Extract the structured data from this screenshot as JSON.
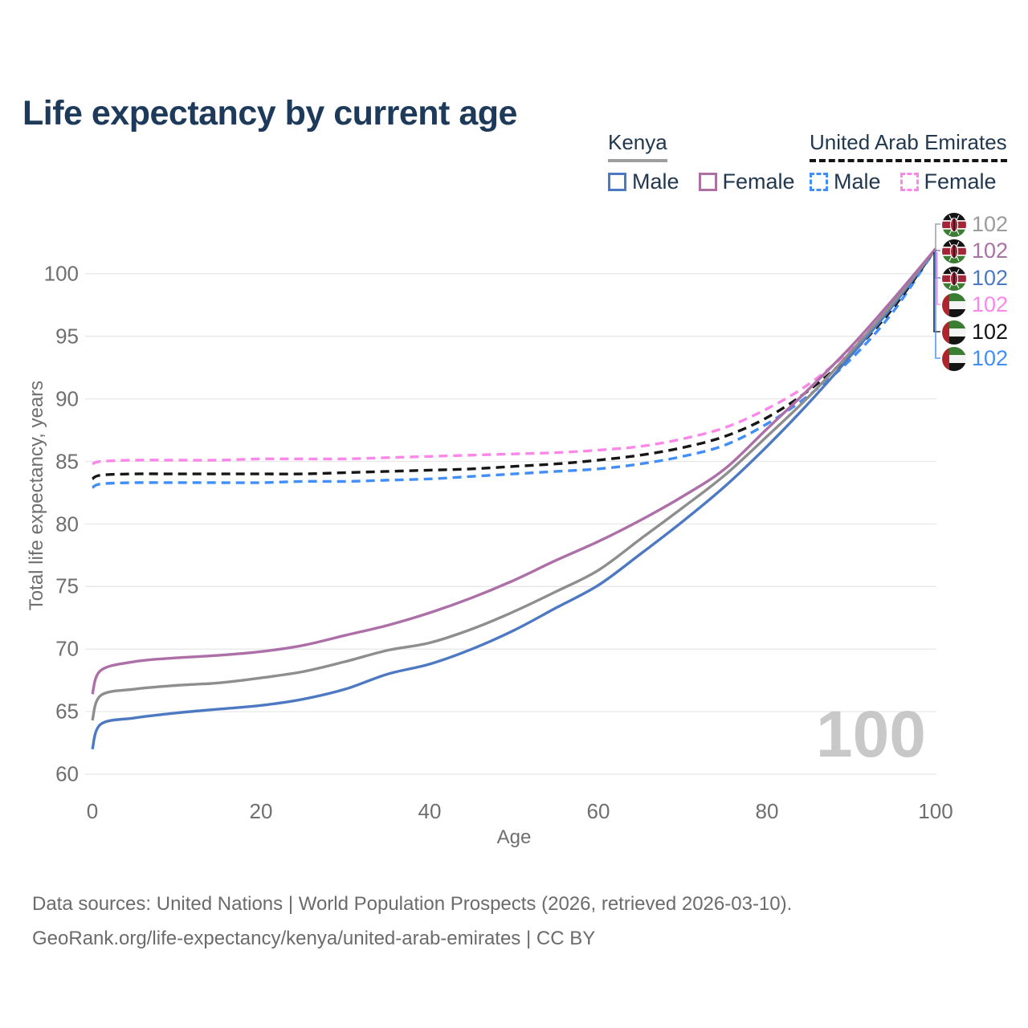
{
  "title": "Life expectancy by current age",
  "legend": {
    "kenya": {
      "title": "Kenya",
      "male": "Male",
      "female": "Female"
    },
    "uae": {
      "title": "United Arab Emirates",
      "male": "Male",
      "female": "Female"
    }
  },
  "watermark": "100",
  "right_labels": [
    {
      "flag": "kenya",
      "series": "kenya-both",
      "value": "102",
      "color": "#9b9b9b"
    },
    {
      "flag": "kenya",
      "series": "kenya-female",
      "value": "102",
      "color": "#a873a4"
    },
    {
      "flag": "kenya",
      "series": "kenya-male",
      "value": "102",
      "color": "#4d79c2"
    },
    {
      "flag": "uae",
      "series": "uae-female",
      "value": "102",
      "color": "#fb87e8"
    },
    {
      "flag": "uae",
      "series": "uae-both",
      "value": "102",
      "color": "#141414"
    },
    {
      "flag": "uae",
      "series": "uae-male",
      "value": "102",
      "color": "#418ff6"
    }
  ],
  "footer": {
    "line1": "Data sources: United Nations | World Population Prospects (2026, retrieved 2026-03-10).",
    "line2": "GeoRank.org/life-expectancy/kenya/united-arab-emirates | CC BY"
  },
  "chart_data": {
    "type": "line",
    "title": "Life expectancy by current age",
    "xlabel": "Age",
    "ylabel": "Total life expectancy, years",
    "xlim": [
      0,
      100
    ],
    "ylim": [
      60,
      103
    ],
    "x_ticks": [
      0,
      20,
      40,
      60,
      80,
      100
    ],
    "y_ticks": [
      60,
      65,
      70,
      75,
      80,
      85,
      90,
      95,
      100
    ],
    "grid": "horizontal",
    "legend_position": "top-right",
    "ages": [
      0,
      1,
      5,
      10,
      15,
      20,
      25,
      30,
      35,
      40,
      45,
      50,
      55,
      60,
      65,
      70,
      75,
      80,
      85,
      90,
      95,
      100
    ],
    "series": [
      {
        "name": "United Arab Emirates Male",
        "id": "uae-male",
        "color": "#418ff6",
        "dash": true,
        "values": [
          82.9,
          83.2,
          83.3,
          83.3,
          83.3,
          83.3,
          83.4,
          83.4,
          83.5,
          83.6,
          83.8,
          84.0,
          84.2,
          84.4,
          84.8,
          85.4,
          86.3,
          88.0,
          90.3,
          93.2,
          97.0,
          102
        ]
      },
      {
        "name": "United Arab Emirates Both sexes",
        "id": "uae-both",
        "color": "#161616",
        "dash": true,
        "values": [
          83.6,
          83.9,
          84.0,
          84.0,
          84.0,
          84.0,
          84.0,
          84.1,
          84.2,
          84.3,
          84.4,
          84.6,
          84.8,
          85.1,
          85.5,
          86.1,
          87.0,
          88.5,
          90.7,
          93.6,
          97.3,
          102
        ]
      },
      {
        "name": "United Arab Emirates Female",
        "id": "uae-female",
        "color": "#fb87e8",
        "dash": true,
        "values": [
          84.8,
          85.0,
          85.1,
          85.1,
          85.1,
          85.2,
          85.2,
          85.2,
          85.3,
          85.4,
          85.5,
          85.6,
          85.7,
          85.9,
          86.2,
          86.8,
          87.7,
          89.2,
          91.2,
          94.0,
          97.7,
          102
        ]
      },
      {
        "name": "Kenya Male",
        "id": "kenya-male",
        "color": "#4d79c2",
        "dash": false,
        "values": [
          62.0,
          64.0,
          64.5,
          64.9,
          65.2,
          65.5,
          66.0,
          66.8,
          68.0,
          68.8,
          70.0,
          71.5,
          73.3,
          75.1,
          77.6,
          80.2,
          83.0,
          86.2,
          89.7,
          93.5,
          97.5,
          102
        ]
      },
      {
        "name": "Kenya Both sexes",
        "id": "kenya-both",
        "color": "#8e8e8e",
        "dash": false,
        "values": [
          64.3,
          66.3,
          66.8,
          67.1,
          67.3,
          67.7,
          68.2,
          69.0,
          69.9,
          70.5,
          71.6,
          73.0,
          74.6,
          76.3,
          78.8,
          81.3,
          83.9,
          87.0,
          90.2,
          93.8,
          97.7,
          102
        ]
      },
      {
        "name": "Kenya Female",
        "id": "kenya-female",
        "color": "#ac6fa7",
        "dash": false,
        "values": [
          66.4,
          68.3,
          69.0,
          69.3,
          69.5,
          69.8,
          70.3,
          71.1,
          71.9,
          72.9,
          74.1,
          75.5,
          77.1,
          78.6,
          80.3,
          82.2,
          84.4,
          87.6,
          90.8,
          94.2,
          98.0,
          102
        ]
      }
    ]
  }
}
